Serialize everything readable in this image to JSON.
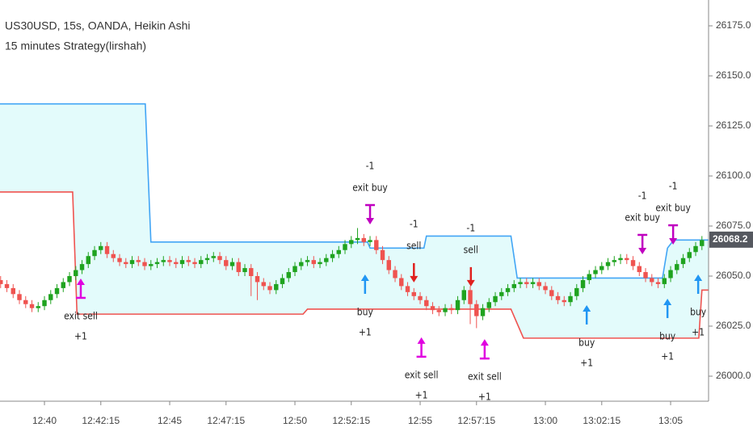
{
  "chart_data": {
    "type": "candlestick",
    "title": "US30USD, 15s, OANDA, Heikin Ashi",
    "subtitle": "15 minutes Strategy(lirshah)",
    "up_color": "#1fa31f",
    "down_color": "#ef5350",
    "x": [
      -7,
      -6,
      -5,
      -4,
      -3,
      -2,
      -1,
      0,
      1,
      2,
      3,
      4,
      5,
      6,
      7,
      8,
      9,
      10,
      11,
      12,
      13,
      14,
      15,
      16,
      17,
      18,
      19,
      20,
      21,
      22,
      23,
      24,
      25,
      26,
      27,
      28,
      29,
      30,
      31,
      32,
      33,
      34,
      35,
      36,
      37,
      38,
      39,
      40,
      41,
      42,
      43,
      44,
      45,
      46,
      47,
      48,
      49,
      50,
      51,
      52,
      53,
      54,
      55,
      56,
      57,
      58,
      59,
      60,
      61,
      62,
      63,
      64,
      65,
      66,
      67,
      68,
      69,
      70,
      71,
      72,
      73,
      74,
      75,
      76,
      77,
      78,
      79,
      80,
      81,
      82,
      83,
      84,
      85,
      86,
      87,
      88,
      89,
      90,
      91,
      92,
      93,
      94,
      95,
      96,
      97,
      98,
      99,
      100,
      101,
      102,
      103,
      104,
      105
    ],
    "open": [
      26048,
      26046,
      26044,
      26041,
      26038,
      26036,
      26034,
      26035,
      26038,
      26041,
      26044,
      26047,
      26050,
      26053,
      26056,
      26060,
      26063,
      26065,
      26061,
      26059,
      26057,
      26056,
      26058,
      26057,
      26055,
      26056,
      26057,
      26058,
      26057,
      26056,
      26058,
      26057,
      26056,
      26058,
      26059,
      26060,
      26058,
      26055,
      26057,
      26052,
      26054,
      26050,
      26047,
      26045,
      26043,
      26046,
      26049,
      26052,
      26055,
      26057,
      26058,
      26056,
      26057,
      26059,
      26061,
      26063,
      26066,
      26068,
      26069,
      26067,
      26068,
      26063,
      26058,
      26053,
      26049,
      26045,
      26042,
      26040,
      26038,
      26035,
      26033,
      26032,
      26034,
      26033,
      26038,
      26043,
      26036,
      26030,
      26034,
      26037,
      26040,
      26042,
      26044,
      26046,
      26047,
      26046,
      26047,
      26045,
      26043,
      26040,
      26038,
      26037,
      26040,
      26044,
      26048,
      26051,
      26053,
      26055,
      26057,
      26058,
      26059,
      26058,
      26055,
      26052,
      26049,
      26047,
      26046,
      26049,
      26053,
      26056,
      26059,
      26062,
      26065
    ],
    "high": [
      26050,
      26048,
      26046,
      26043,
      26040,
      26038,
      26037,
      26040,
      26043,
      26046,
      26049,
      26052,
      26055,
      26058,
      26062,
      26065,
      26067,
      26067,
      26063,
      26061,
      26059,
      26060,
      26060,
      26059,
      26058,
      26059,
      26060,
      26060,
      26059,
      26060,
      26060,
      26059,
      26060,
      26061,
      26062,
      26062,
      26060,
      26059,
      26059,
      26056,
      26056,
      26052,
      26049,
      26047,
      26048,
      26051,
      26054,
      26057,
      26059,
      26060,
      26060,
      26059,
      26061,
      26063,
      26065,
      26068,
      26070,
      26074,
      26071,
      26070,
      26070,
      26065,
      26060,
      26055,
      26051,
      26047,
      26044,
      26042,
      26040,
      26037,
      26035,
      26036,
      26036,
      26040,
      26045,
      26045,
      26038,
      26036,
      26039,
      26042,
      26044,
      26046,
      26048,
      26049,
      26049,
      26049,
      26049,
      26047,
      26045,
      26042,
      26040,
      26042,
      26046,
      26050,
      26053,
      26055,
      26057,
      26059,
      26060,
      26061,
      26061,
      26060,
      26057,
      26054,
      26051,
      26049,
      26051,
      26055,
      26058,
      26061,
      26064,
      26067,
      26070
    ],
    "low": [
      26044,
      26042,
      26039,
      26036,
      26034,
      26032,
      26032,
      26033,
      26036,
      26039,
      26042,
      26045,
      26048,
      26051,
      26054,
      26058,
      26061,
      26059,
      26057,
      26055,
      26054,
      26054,
      26055,
      26053,
      26053,
      26054,
      26055,
      26055,
      26054,
      26054,
      26055,
      26054,
      26054,
      26056,
      26057,
      26056,
      26053,
      26053,
      26050,
      26050,
      26040,
      26038,
      26043,
      26041,
      26041,
      26044,
      26047,
      26050,
      26053,
      26055,
      26054,
      26054,
      26055,
      26057,
      26059,
      26061,
      26064,
      26066,
      26065,
      26065,
      26061,
      26056,
      26051,
      26047,
      26043,
      26040,
      26038,
      26036,
      26033,
      26031,
      26030,
      26030,
      26031,
      26031,
      26036,
      26026,
      26024,
      26028,
      26032,
      26035,
      26038,
      26040,
      26042,
      26044,
      26044,
      26044,
      26043,
      26041,
      26038,
      26036,
      26035,
      26035,
      26038,
      26042,
      26046,
      26049,
      26051,
      26053,
      26055,
      26056,
      26056,
      26053,
      26050,
      26047,
      26045,
      26044,
      26044,
      26047,
      26051,
      26054,
      26057,
      26060,
      26063
    ],
    "close": [
      26046,
      26044,
      26041,
      26038,
      26036,
      26034,
      26035,
      26038,
      26041,
      26044,
      26047,
      26050,
      26053,
      26056,
      26060,
      26063,
      26065,
      26061,
      26059,
      26057,
      26056,
      26058,
      26057,
      26055,
      26056,
      26057,
      26058,
      26057,
      26056,
      26058,
      26057,
      26056,
      26058,
      26059,
      26060,
      26058,
      26055,
      26057,
      26052,
      26054,
      26050,
      26047,
      26045,
      26043,
      26046,
      26049,
      26052,
      26055,
      26057,
      26058,
      26056,
      26057,
      26059,
      26061,
      26063,
      26066,
      26068,
      26069,
      26067,
      26068,
      26063,
      26058,
      26053,
      26049,
      26045,
      26042,
      26040,
      26038,
      26035,
      26033,
      26032,
      26034,
      26033,
      26038,
      26043,
      26036,
      26030,
      26034,
      26037,
      26040,
      26042,
      26044,
      26046,
      26047,
      26046,
      26047,
      26045,
      26043,
      26040,
      26038,
      26037,
      26040,
      26044,
      26048,
      26051,
      26053,
      26055,
      26057,
      26058,
      26059,
      26058,
      26055,
      26052,
      26049,
      26047,
      26046,
      26049,
      26053,
      26056,
      26059,
      26062,
      26065,
      26068
    ],
    "bands": [
      {
        "color": "#42a5f5",
        "x": [
          -7.1,
          16.1,
          17,
          51.6,
          52,
          60.6,
          61,
          74.5,
          75.5,
          98.7,
          99.5,
          100.5,
          106
        ],
        "values": [
          26136,
          26136,
          26067,
          26067,
          26064,
          26064,
          26070,
          26070,
          26049,
          26049,
          26064,
          26068,
          26068
        ]
      },
      {
        "color": "#ef5350",
        "x": [
          -7.1,
          4.5,
          5.2,
          41.3,
          42,
          74.5,
          76.5,
          104.5,
          105,
          106
        ],
        "values": [
          26092,
          26092,
          26031,
          26031,
          26033.5,
          26033.5,
          26019,
          26019,
          26043,
          26043
        ]
      }
    ],
    "band_fill": "#e3fbfb",
    "signals": [
      {
        "x": 5.8,
        "price": 26048.8,
        "direction": "up",
        "color": "#e000e0",
        "label": "exit sell",
        "qty": "+1"
      },
      {
        "x": 52,
        "price": 26075.8,
        "direction": "down",
        "color": "#c000c0",
        "label": "exit buy",
        "qty": "-1"
      },
      {
        "x": 51.2,
        "price": 26050.8,
        "direction": "up",
        "color": "#2196f3",
        "label": "buy",
        "qty": "+1"
      },
      {
        "x": 59,
        "price": 26046.8,
        "direction": "down",
        "color": "#e0201e",
        "label": "sell",
        "qty": "-1"
      },
      {
        "x": 60.2,
        "price": 26019.4,
        "direction": "up",
        "color": "#e000e0",
        "label": "exit sell",
        "qty": "+1"
      },
      {
        "x": 68.1,
        "price": 26044.8,
        "direction": "down",
        "color": "#e0201e",
        "label": "sell",
        "qty": "-1"
      },
      {
        "x": 70.3,
        "price": 26018.5,
        "direction": "up",
        "color": "#e000e0",
        "label": "exit sell",
        "qty": "+1"
      },
      {
        "x": 86.6,
        "price": 26035.5,
        "direction": "up",
        "color": "#2196f3",
        "label": "buy",
        "qty": "+1"
      },
      {
        "x": 95.5,
        "price": 26060.9,
        "direction": "down",
        "color": "#c000c0",
        "label": "exit buy",
        "qty": "-1"
      },
      {
        "x": 99.5,
        "price": 26038.7,
        "direction": "up",
        "color": "#2196f3",
        "label": "buy",
        "qty": "+1"
      },
      {
        "x": 100.4,
        "price": 26065.7,
        "direction": "down",
        "color": "#c000c0",
        "label": "exit buy",
        "qty": "-1"
      },
      {
        "x": 104.4,
        "price": 26050.8,
        "direction": "up",
        "color": "#2196f3",
        "label": "buy",
        "qty": "+1"
      }
    ],
    "last_price": 26068.2,
    "xlim": [
      -7.1,
      106.06
    ],
    "xticks": [
      {
        "value": 0,
        "label": "12:40"
      },
      {
        "value": 9,
        "label": "12:42:15"
      },
      {
        "value": 20,
        "label": "12:45"
      },
      {
        "value": 29,
        "label": "12:47:15"
      },
      {
        "value": 40,
        "label": "12:50"
      },
      {
        "value": 49,
        "label": "12:52:15"
      },
      {
        "value": 60,
        "label": "12:55"
      },
      {
        "value": 69,
        "label": "12:57:15"
      },
      {
        "value": 80,
        "label": "13:00"
      },
      {
        "value": 89,
        "label": "13:02:15"
      },
      {
        "value": 100,
        "label": "13:05"
      }
    ],
    "ylim": [
      25987.5,
      26187.9
    ],
    "yticks": [
      {
        "value": 26000,
        "label": "26000.0"
      },
      {
        "value": 26025,
        "label": "26025.0"
      },
      {
        "value": 26050,
        "label": "26050.0"
      },
      {
        "value": 26075,
        "label": "26075.0"
      },
      {
        "value": 26100,
        "label": "26100.0"
      },
      {
        "value": 26125,
        "label": "26125.0"
      },
      {
        "value": 26150,
        "label": "26150.0"
      },
      {
        "value": 26175,
        "label": "26175.0"
      }
    ]
  }
}
